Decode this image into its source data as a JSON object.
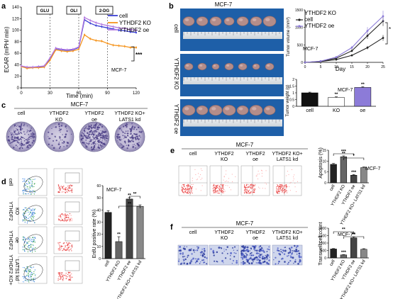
{
  "panel_letters": {
    "a": "a",
    "b": "b",
    "c": "c",
    "d": "d",
    "e": "e",
    "f": "f"
  },
  "cell_line": "MCF-7",
  "groups4": [
    "cell",
    "YTHDF2 KO",
    "YTHDF2 oe",
    "YTHDF2 KO+ LATS1 kd"
  ],
  "groups3": [
    "cell",
    "YTHDF2 KO",
    "YTHDF2 oe"
  ],
  "ecar": {
    "ylabel": "ECAR (mPH/ min)",
    "xlabel": "Time (min)",
    "injections": [
      "GLU",
      "OLI",
      "2-DG"
    ],
    "sig": "***"
  },
  "tumor": {
    "ylabel": "Tumor volume (mm³)",
    "xlabel": "Day",
    "sig": "*"
  },
  "weight": {
    "ylabel": "Tumor weight (g)",
    "sig_ko": "**",
    "sig_oe": "**"
  },
  "c_stars": "",
  "d": {
    "ylabel": "ErdU positive rate (%)",
    "sig_ko": "**",
    "sig_oe": "**",
    "b1": "**",
    "b2": "**"
  },
  "e": {
    "ylabel": "Apoptosis (%)",
    "sig_ko": "**",
    "sig_oe": "***",
    "b1": "***",
    "b2": "*"
  },
  "f": {
    "ylabel": "Transwell cell count",
    "sig_ko": "***",
    "sig_oe": "**",
    "b1": "**",
    "b2": "**"
  },
  "chart_data": [
    {
      "type": "line",
      "name_ref": "a",
      "x": [
        0,
        6,
        12,
        18,
        24,
        30,
        36,
        42,
        48,
        54,
        60,
        66,
        72,
        78,
        84,
        90,
        96,
        102,
        108,
        114,
        120
      ],
      "xlim": [
        0,
        120
      ],
      "ylim": [
        0,
        140
      ],
      "xticks": [
        0,
        30,
        60,
        90,
        120
      ],
      "yticks": [
        0,
        20,
        40,
        60,
        80,
        100,
        120,
        140
      ],
      "series": [
        {
          "name": "cell",
          "color": "#3a3fd4",
          "values": [
            37,
            35,
            35,
            36,
            37,
            50,
            68,
            66,
            65,
            66,
            70,
            118,
            112,
            108,
            106,
            104,
            102,
            100,
            99,
            97,
            96
          ]
        },
        {
          "name": "YTHDF2 KO",
          "color": "#f5941d",
          "values": [
            37,
            34,
            35,
            35,
            36,
            48,
            66,
            64,
            63,
            64,
            67,
            92,
            85,
            82,
            81,
            77,
            74,
            73,
            72,
            70,
            70
          ]
        },
        {
          "name": "YTHDF2 oe",
          "color": "#b57be0",
          "values": [
            38,
            36,
            36,
            37,
            38,
            52,
            69,
            67,
            66,
            67,
            71,
            122,
            117,
            113,
            110,
            108,
            106,
            104,
            103,
            101,
            100
          ]
        }
      ]
    },
    {
      "type": "line",
      "name_ref": "b-volume",
      "x": [
        0,
        5,
        10,
        15,
        20,
        25
      ],
      "xlim": [
        0,
        25
      ],
      "ylim": [
        0,
        1500
      ],
      "xticks": [
        0,
        5,
        10,
        15,
        20,
        25
      ],
      "yticks": [
        0,
        500,
        1000,
        1500
      ],
      "series": [
        {
          "name": "cell",
          "color": "#222222",
          "values": [
            0,
            30,
            120,
            330,
            760,
            1180
          ]
        },
        {
          "name": "YTHDF2 KO",
          "color": "#222222",
          "values": [
            0,
            25,
            80,
            200,
            420,
            700
          ]
        },
        {
          "name": "YTHDF2 oe",
          "color": "#8c7bd8",
          "values": [
            0,
            35,
            150,
            420,
            900,
            1320
          ]
        }
      ]
    },
    {
      "type": "bar",
      "name_ref": "b-weight",
      "categories": [
        "cell",
        "KO",
        "oe"
      ],
      "values": [
        1.0,
        0.65,
        1.4
      ],
      "errors": [
        0.05,
        0.05,
        0.05
      ],
      "ylim": [
        0,
        2.0
      ],
      "yticks": [
        0,
        0.5,
        1.0,
        1.5,
        2.0
      ]
    },
    {
      "type": "bar",
      "name_ref": "d",
      "categories": [
        "cell",
        "YTHDF2 KO",
        "YTHDF2 oe",
        "YTHDF2 KO+ LATS1 kd"
      ],
      "values": [
        38,
        14,
        49,
        43
      ],
      "errors": [
        1.5,
        4,
        1.2,
        1.2
      ],
      "ylim": [
        0,
        60
      ],
      "yticks": [
        0,
        10,
        20,
        30,
        40,
        50,
        60
      ]
    },
    {
      "type": "bar",
      "name_ref": "e",
      "categories": [
        "cell",
        "YTHDF2 KO",
        "YTHDF2 oe",
        "YTHDF2 KO+ LATS1 kd"
      ],
      "values": [
        8.5,
        12,
        3.5,
        7
      ],
      "errors": [
        0.4,
        0.4,
        0.3,
        0.3
      ],
      "ylim": [
        0,
        15
      ],
      "yticks": [
        0,
        5,
        10,
        15
      ]
    },
    {
      "type": "bar",
      "name_ref": "f",
      "categories": [
        "cell",
        "YTHDF2 KO",
        "YTHDF2 oe",
        "YTHDF2 KO+ LATS1 kd"
      ],
      "values": [
        600,
        200,
        1350,
        580
      ],
      "errors": [
        30,
        20,
        60,
        40
      ],
      "ylim": [
        0,
        2000
      ],
      "yticks": [
        0,
        500,
        1000,
        1500,
        2000
      ]
    }
  ]
}
